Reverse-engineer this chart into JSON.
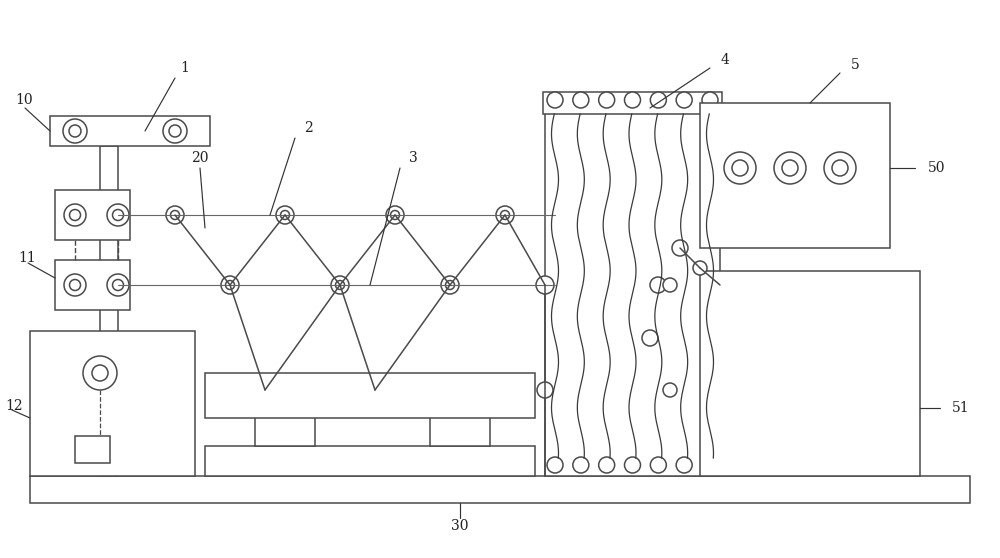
{
  "bg_color": "#ffffff",
  "line_color": "#4a4a4a",
  "fig_width": 10.0,
  "fig_height": 5.58,
  "dpi": 100,
  "lw": 1.1,
  "label_fs": 10,
  "label_color": "#222222"
}
